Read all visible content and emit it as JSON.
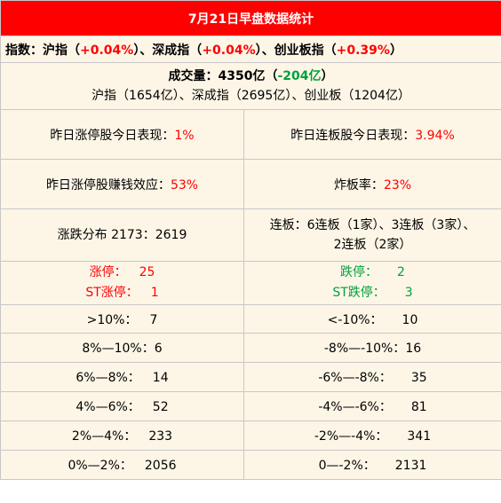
{
  "title": "7月21日早盘数据统计",
  "indices": {
    "prefix": "指数：沪指（",
    "sh_change": "+0.04%",
    "sep1": "）、深成指（",
    "sz_change": "+0.04%",
    "sep2": "）、创业板指（",
    "cy_change": "+0.39%",
    "suffix": "）"
  },
  "volume": {
    "label": "成交量：4350亿（",
    "change": "-204亿",
    "close": "）",
    "breakdown": "沪指（1654亿）、深成指（2695亿）、创业板（1204亿）"
  },
  "stats": {
    "prev_limit_up_label": "昨日涨停股今日表现：",
    "prev_limit_up_value": "1%",
    "prev_consecutive_label": "昨日连板股今日表现：",
    "prev_consecutive_value": "3.94%",
    "profit_effect_label": "昨日涨停股赚钱效应：",
    "profit_effect_value": "53%",
    "broken_board_label": "炸板率：",
    "broken_board_value": "23%",
    "distribution": "涨跌分布 2173：2619",
    "consecutive_line1": "连板：6连板（1家）、3连板（3家）、",
    "consecutive_line2": "2连板（2家）"
  },
  "limits": {
    "up_label": "涨停：",
    "up_value": "25",
    "st_up_label": "ST涨停：",
    "st_up_value": "1",
    "down_label": "跌停：",
    "down_value": "2",
    "st_down_label": "ST跌停：",
    "st_down_value": "3"
  },
  "ranges": [
    {
      "up_label": ">10%：",
      "up_value": "7",
      "down_label": "<-10%：",
      "down_value": "10"
    },
    {
      "up_label": "8%—10%：",
      "up_value": "6",
      "down_label": "-8%—-10%：",
      "down_value": "16"
    },
    {
      "up_label": "6%—8%：",
      "up_value": "14",
      "down_label": "-6%—-8%：",
      "down_value": "35"
    },
    {
      "up_label": "4%—6%：",
      "up_value": "52",
      "down_label": "-4%—-6%：",
      "down_value": "81"
    },
    {
      "up_label": "2%—4%：",
      "up_value": "233",
      "down_label": "-2%—-4%：",
      "down_value": "341"
    },
    {
      "up_label": "0%—2%：",
      "up_value": "2056",
      "down_label": "0—-2%：",
      "down_value": "2131"
    }
  ],
  "colors": {
    "title_bg": "#ff0000",
    "cell_bg": "#fdf6e7",
    "up": "#ff0000",
    "down": "#00a03c"
  }
}
